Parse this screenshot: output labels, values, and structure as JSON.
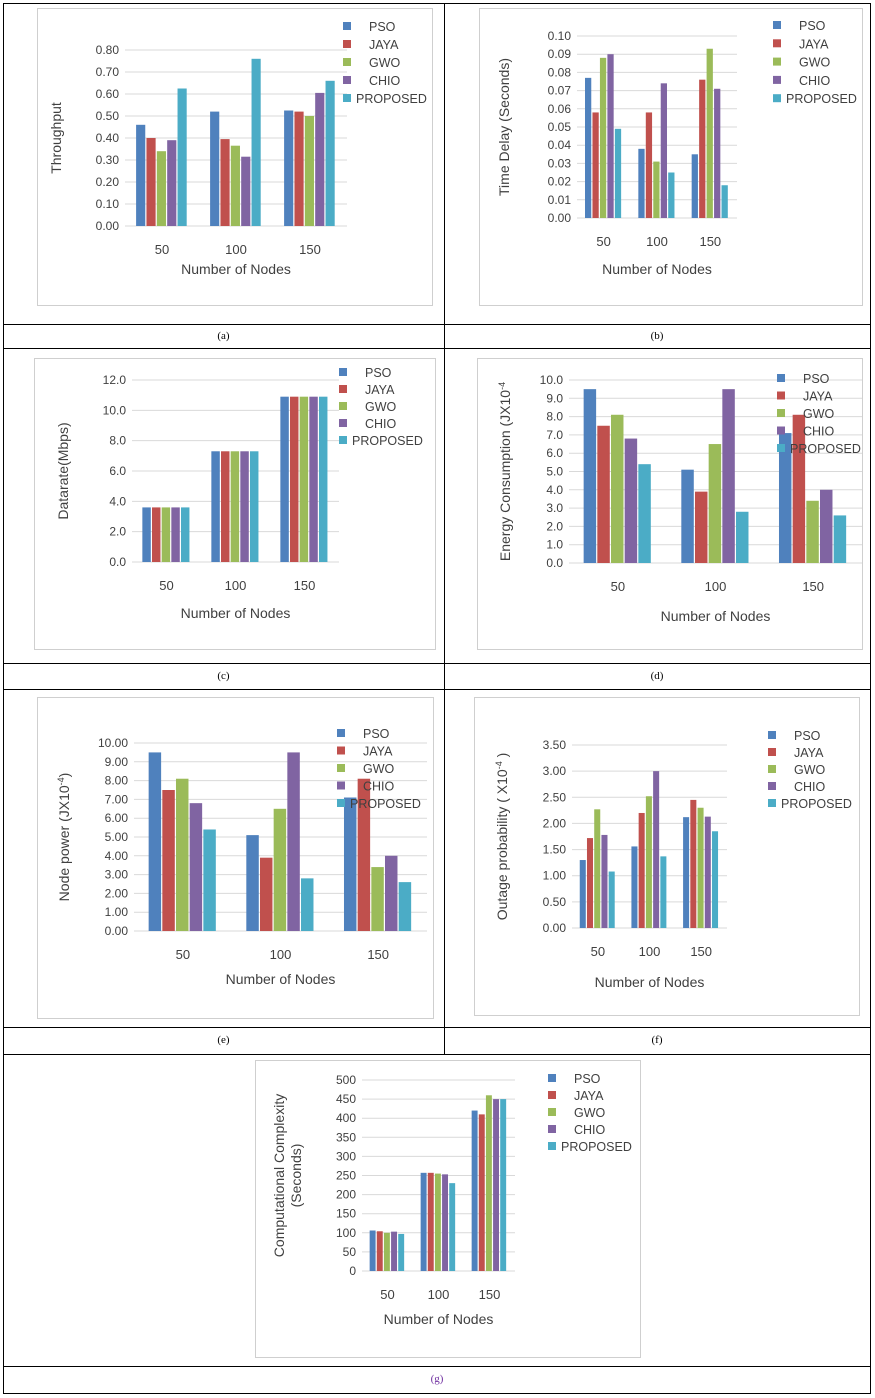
{
  "colors": {
    "PSO": "#4f81bd",
    "JAYA": "#c0504d",
    "GWO": "#9bbb59",
    "CHIO": "#8064a2",
    "PROPOSED": "#4bacc6",
    "axis_text": "#404040",
    "gridline": "#d9d9d9",
    "caption_purple": "#7030a0"
  },
  "captions": [
    "(a)",
    "(b)",
    "(c)",
    "(d)",
    "(e)",
    "(f)",
    "(g)"
  ],
  "chart_data": [
    {
      "id": "a",
      "type": "bar",
      "ylabel": "Throughput",
      "xlabel": "Number of Nodes",
      "categories": [
        "50",
        "100",
        "150"
      ],
      "ylim": [
        0,
        0.8
      ],
      "yticks": [
        "0.00",
        "0.10",
        "0.20",
        "0.30",
        "0.40",
        "0.50",
        "0.60",
        "0.70",
        "0.80"
      ],
      "series": [
        {
          "name": "PSO",
          "values": [
            0.46,
            0.52,
            0.525
          ]
        },
        {
          "name": "JAYA",
          "values": [
            0.4,
            0.395,
            0.52
          ]
        },
        {
          "name": "GWO",
          "values": [
            0.34,
            0.365,
            0.5
          ]
        },
        {
          "name": "CHIO",
          "values": [
            0.39,
            0.315,
            0.605
          ]
        },
        {
          "name": "PROPOSED",
          "values": [
            0.625,
            0.76,
            0.66
          ]
        }
      ]
    },
    {
      "id": "b",
      "type": "bar",
      "ylabel": "Time Delay (Seconds)",
      "xlabel": "Number of Nodes",
      "categories": [
        "50",
        "100",
        "150"
      ],
      "ylim": [
        0,
        0.1
      ],
      "yticks": [
        "0.00",
        "0.01",
        "0.02",
        "0.03",
        "0.04",
        "0.05",
        "0.06",
        "0.07",
        "0.08",
        "0.09",
        "0.10"
      ],
      "series": [
        {
          "name": "PSO",
          "values": [
            0.077,
            0.038,
            0.035
          ]
        },
        {
          "name": "JAYA",
          "values": [
            0.058,
            0.058,
            0.076
          ]
        },
        {
          "name": "GWO",
          "values": [
            0.088,
            0.031,
            0.093
          ]
        },
        {
          "name": "CHIO",
          "values": [
            0.09,
            0.074,
            0.071
          ]
        },
        {
          "name": "PROPOSED",
          "values": [
            0.049,
            0.025,
            0.018
          ]
        }
      ]
    },
    {
      "id": "c",
      "type": "bar",
      "ylabel": "Datarate(Mbps)",
      "xlabel": "Number of Nodes",
      "categories": [
        "50",
        "100",
        "150"
      ],
      "ylim": [
        0,
        12
      ],
      "yticks": [
        "0.0",
        "2.0",
        "4.0",
        "6.0",
        "8.0",
        "10.0",
        "12.0"
      ],
      "series": [
        {
          "name": "PSO",
          "values": [
            3.6,
            7.3,
            10.9
          ]
        },
        {
          "name": "JAYA",
          "values": [
            3.6,
            7.3,
            10.9
          ]
        },
        {
          "name": "GWO",
          "values": [
            3.6,
            7.3,
            10.9
          ]
        },
        {
          "name": "CHIO",
          "values": [
            3.6,
            7.3,
            10.9
          ]
        },
        {
          "name": "PROPOSED",
          "values": [
            3.6,
            7.3,
            10.9
          ]
        }
      ]
    },
    {
      "id": "d",
      "type": "bar",
      "ylabel": "Energy Consumption (JX10",
      "ylabel_sup": "-4",
      "xlabel": "Number of Nodes",
      "categories": [
        "50",
        "100",
        "150"
      ],
      "ylim": [
        0,
        10
      ],
      "yticks": [
        "0.0",
        "1.0",
        "2.0",
        "3.0",
        "4.0",
        "5.0",
        "6.0",
        "7.0",
        "8.0",
        "9.0",
        "10.0"
      ],
      "series": [
        {
          "name": "PSO",
          "values": [
            9.5,
            5.1,
            7.1
          ]
        },
        {
          "name": "JAYA",
          "values": [
            7.5,
            3.9,
            8.1
          ]
        },
        {
          "name": "GWO",
          "values": [
            8.1,
            6.5,
            3.4
          ]
        },
        {
          "name": "CHIO",
          "values": [
            6.8,
            9.5,
            4.0
          ]
        },
        {
          "name": "PROPOSED",
          "values": [
            5.4,
            2.8,
            2.6
          ]
        }
      ]
    },
    {
      "id": "e",
      "type": "bar",
      "ylabel": "Node power (JX10",
      "ylabel_sup": "-4",
      "ylabel_end": ")",
      "xlabel": "Number of Nodes",
      "categories": [
        "50",
        "100",
        "150"
      ],
      "ylim": [
        0,
        10
      ],
      "yticks": [
        "0.00",
        "1.00",
        "2.00",
        "3.00",
        "4.00",
        "5.00",
        "6.00",
        "7.00",
        "8.00",
        "9.00",
        "10.00"
      ],
      "series": [
        {
          "name": "PSO",
          "values": [
            9.5,
            5.1,
            7.1
          ]
        },
        {
          "name": "JAYA",
          "values": [
            7.5,
            3.9,
            8.1
          ]
        },
        {
          "name": "GWO",
          "values": [
            8.1,
            6.5,
            3.4
          ]
        },
        {
          "name": "CHIO",
          "values": [
            6.8,
            9.5,
            4.0
          ]
        },
        {
          "name": "PROPOSED",
          "values": [
            5.4,
            2.8,
            2.6
          ]
        }
      ]
    },
    {
      "id": "f",
      "type": "bar",
      "ylabel": "Outage probability ( X10",
      "ylabel_sup": "-4",
      "ylabel_end": " )",
      "xlabel": "Number of Nodes",
      "categories": [
        "50",
        "100",
        "150"
      ],
      "ylim": [
        0,
        3.5
      ],
      "yticks": [
        "0.00",
        "0.50",
        "1.00",
        "1.50",
        "2.00",
        "2.50",
        "3.00",
        "3.50"
      ],
      "series": [
        {
          "name": "PSO",
          "values": [
            1.3,
            1.56,
            2.12
          ]
        },
        {
          "name": "JAYA",
          "values": [
            1.72,
            2.2,
            2.45
          ]
        },
        {
          "name": "GWO",
          "values": [
            2.27,
            2.52,
            2.3
          ]
        },
        {
          "name": "CHIO",
          "values": [
            1.78,
            3.0,
            2.13
          ]
        },
        {
          "name": "PROPOSED",
          "values": [
            1.08,
            1.37,
            1.85
          ]
        }
      ]
    },
    {
      "id": "g",
      "type": "bar",
      "ylabel": "Computational Complexity",
      "ylabel2": "(Seconds)",
      "xlabel": "Number of Nodes",
      "categories": [
        "50",
        "100",
        "150"
      ],
      "ylim": [
        0,
        500
      ],
      "yticks": [
        "0",
        "50",
        "100",
        "150",
        "200",
        "250",
        "300",
        "350",
        "400",
        "450",
        "500"
      ],
      "series": [
        {
          "name": "PSO",
          "values": [
            106,
            257,
            420
          ]
        },
        {
          "name": "JAYA",
          "values": [
            104,
            257,
            410
          ]
        },
        {
          "name": "GWO",
          "values": [
            100,
            255,
            460
          ]
        },
        {
          "name": "CHIO",
          "values": [
            103,
            253,
            450
          ]
        },
        {
          "name": "PROPOSED",
          "values": [
            97,
            230,
            450
          ]
        }
      ]
    }
  ]
}
